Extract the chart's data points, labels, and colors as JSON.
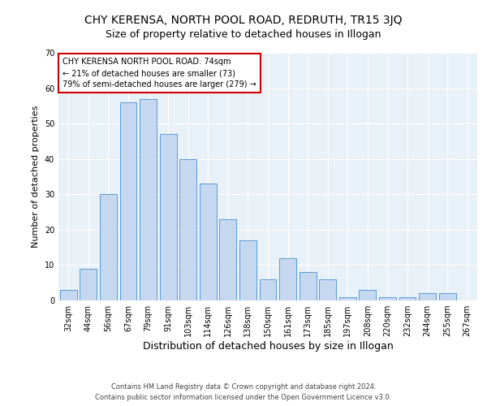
{
  "title": "CHY KERENSA, NORTH POOL ROAD, REDRUTH, TR15 3JQ",
  "subtitle": "Size of property relative to detached houses in Illogan",
  "xlabel": "Distribution of detached houses by size in Illogan",
  "ylabel": "Number of detached properties",
  "categories": [
    "32sqm",
    "44sqm",
    "56sqm",
    "67sqm",
    "79sqm",
    "91sqm",
    "103sqm",
    "114sqm",
    "126sqm",
    "138sqm",
    "150sqm",
    "161sqm",
    "173sqm",
    "185sqm",
    "197sqm",
    "208sqm",
    "220sqm",
    "232sqm",
    "244sqm",
    "255sqm",
    "267sqm"
  ],
  "values": [
    3,
    9,
    30,
    56,
    57,
    47,
    40,
    33,
    23,
    17,
    6,
    12,
    8,
    6,
    1,
    3,
    1,
    1,
    2,
    2,
    0
  ],
  "bar_color": "#c5d8f0",
  "bar_edge_color": "#5b9bd5",
  "annotation_title": "CHY KERENSA NORTH POOL ROAD: 74sqm",
  "annotation_line1": "← 21% of detached houses are smaller (73)",
  "annotation_line2": "79% of semi-detached houses are larger (279) →",
  "annotation_box_color": "#ffffff",
  "annotation_box_edge": "#cc0000",
  "ylim": [
    0,
    70
  ],
  "yticks": [
    0,
    10,
    20,
    30,
    40,
    50,
    60,
    70
  ],
  "bg_color": "#e8f0f8",
  "footer1": "Contains HM Land Registry data © Crown copyright and database right 2024.",
  "footer2": "Contains public sector information licensed under the Open Government Licence v3.0.",
  "title_fontsize": 10,
  "subtitle_fontsize": 9,
  "xlabel_fontsize": 9,
  "ylabel_fontsize": 8,
  "tick_fontsize": 7,
  "annotation_fontsize": 7,
  "footer_fontsize": 6
}
